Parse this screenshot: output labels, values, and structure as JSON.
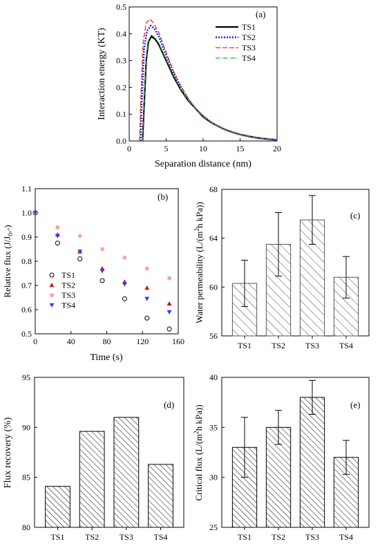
{
  "chart_data": [
    {
      "id": "a",
      "type": "line",
      "panel_label": "(a)",
      "xlabel": "Separation distance (nm)",
      "ylabel": "Interaction energy (KT)",
      "xlim": [
        0,
        20
      ],
      "ylim": [
        0,
        0.5
      ],
      "xticks": [
        "0",
        "5",
        "10",
        "15",
        "20"
      ],
      "yticks": [
        "0.0",
        "0.1",
        "0.2",
        "0.3",
        "0.4",
        "0.5"
      ],
      "legend_position": "top-right",
      "series": [
        {
          "name": "TS1",
          "color": "#000000",
          "dash": "solid",
          "x": [
            1.8,
            2.0,
            2.3,
            2.6,
            3.0,
            3.5,
            4,
            5,
            6,
            7,
            8,
            9,
            10,
            11,
            12,
            13,
            14,
            15,
            16,
            17,
            18,
            19,
            20
          ],
          "y": [
            0.0,
            0.12,
            0.3,
            0.37,
            0.39,
            0.38,
            0.36,
            0.3,
            0.24,
            0.19,
            0.15,
            0.12,
            0.09,
            0.07,
            0.055,
            0.042,
            0.032,
            0.024,
            0.018,
            0.013,
            0.009,
            0.006,
            0.004
          ]
        },
        {
          "name": "TS2",
          "color": "#1a1aff",
          "dash": "dotted",
          "x": [
            1.5,
            1.7,
            2.0,
            2.4,
            2.9,
            3.4,
            4,
            5,
            6,
            7,
            8,
            9,
            10,
            11,
            12,
            13,
            14,
            15,
            16,
            17,
            18,
            19,
            20
          ],
          "y": [
            0.0,
            0.15,
            0.34,
            0.41,
            0.43,
            0.42,
            0.39,
            0.32,
            0.255,
            0.2,
            0.155,
            0.12,
            0.093,
            0.072,
            0.056,
            0.043,
            0.033,
            0.025,
            0.019,
            0.014,
            0.01,
            0.007,
            0.005
          ]
        },
        {
          "name": "TS3",
          "color": "#e03030",
          "dash": "dashed",
          "x": [
            1.4,
            1.6,
            1.9,
            2.3,
            2.8,
            3.3,
            4,
            5,
            6,
            7,
            8,
            9,
            10,
            11,
            12,
            13,
            14,
            15,
            16,
            17,
            18,
            19,
            20
          ],
          "y": [
            0.0,
            0.18,
            0.37,
            0.44,
            0.455,
            0.44,
            0.405,
            0.33,
            0.26,
            0.205,
            0.158,
            0.122,
            0.094,
            0.073,
            0.056,
            0.043,
            0.033,
            0.025,
            0.019,
            0.014,
            0.01,
            0.007,
            0.005
          ]
        },
        {
          "name": "TS4",
          "color": "#22aa22",
          "dash": "dashdot",
          "x": [
            1.8,
            2.0,
            2.3,
            2.6,
            3.0,
            3.5,
            4,
            5,
            6,
            7,
            8,
            9,
            10,
            11,
            12,
            13,
            14,
            15,
            16,
            17,
            18,
            19,
            20
          ],
          "y": [
            0.0,
            0.13,
            0.31,
            0.375,
            0.395,
            0.385,
            0.365,
            0.305,
            0.245,
            0.192,
            0.152,
            0.12,
            0.092,
            0.071,
            0.055,
            0.042,
            0.032,
            0.024,
            0.018,
            0.013,
            0.009,
            0.006,
            0.004
          ]
        }
      ]
    },
    {
      "id": "b",
      "type": "scatter",
      "panel_label": "(b)",
      "xlabel": "Time (s)",
      "ylabel": "Relative flux (J/J",
      "ylabel_sub": "0",
      "ylabel_end": ",-)",
      "xlim": [
        0,
        160
      ],
      "ylim": [
        0.5,
        1.1
      ],
      "xticks": [
        "0",
        "40",
        "80",
        "120",
        "160"
      ],
      "yticks": [
        "0.5",
        "0.6",
        "0.7",
        "0.8",
        "0.9",
        "1.0",
        "1.1"
      ],
      "legend_position": "bottom-left",
      "x": [
        0,
        25,
        50,
        75,
        100,
        125,
        150
      ],
      "series": [
        {
          "name": "TS1",
          "color": "#000000",
          "marker": "circle-open",
          "y": [
            1.0,
            0.875,
            0.81,
            0.72,
            0.645,
            0.565,
            0.52
          ]
        },
        {
          "name": "TS2",
          "color": "#dd1111",
          "marker": "triangle-up",
          "y": [
            1.0,
            0.91,
            0.84,
            0.77,
            0.715,
            0.69,
            0.625
          ]
        },
        {
          "name": "TS3",
          "color": "#f4a6a6",
          "marker": "circle-filled",
          "y": [
            1.0,
            0.94,
            0.905,
            0.85,
            0.815,
            0.77,
            0.73
          ]
        },
        {
          "name": "TS4",
          "color": "#3a3aff",
          "marker": "triangle-down",
          "y": [
            1.0,
            0.905,
            0.84,
            0.76,
            0.705,
            0.645,
            0.59
          ]
        }
      ]
    },
    {
      "id": "c",
      "type": "bar",
      "panel_label": "(c)",
      "ylabel": "Water permeability (L/(m",
      "ylabel_sup": "2",
      "ylabel_end": "h kPa))",
      "ylim": [
        56,
        68
      ],
      "yticks": [
        "56",
        "60",
        "64",
        "68"
      ],
      "categories": [
        "TS1",
        "TS2",
        "TS3",
        "TS4"
      ],
      "values": [
        60.3,
        63.5,
        65.5,
        60.8
      ],
      "errors": [
        1.9,
        2.6,
        2.0,
        1.7
      ],
      "hatch": "backslash-sparse"
    },
    {
      "id": "d",
      "type": "bar",
      "panel_label": "(d)",
      "ylabel": "Flux recovery (%)",
      "ylim": [
        80,
        95
      ],
      "yticks": [
        "80",
        "85",
        "90",
        "95"
      ],
      "categories": [
        "TS1",
        "TS2",
        "TS3",
        "TS4"
      ],
      "values": [
        84.1,
        89.6,
        91.0,
        86.3
      ],
      "hatch": "backslash-dense"
    },
    {
      "id": "e",
      "type": "bar",
      "panel_label": "(e)",
      "ylabel": "Critical flux (L/(m",
      "ylabel_sup": "2",
      "ylabel_end": "h kPa))",
      "ylim": [
        25,
        40
      ],
      "yticks": [
        "25",
        "30",
        "35",
        "40"
      ],
      "categories": [
        "TS1",
        "TS2",
        "TS3",
        "TS4"
      ],
      "values": [
        33.0,
        35.0,
        38.0,
        32.0
      ],
      "errors": [
        3.0,
        1.7,
        1.7,
        1.7
      ],
      "hatch": "backslash-dense"
    }
  ]
}
